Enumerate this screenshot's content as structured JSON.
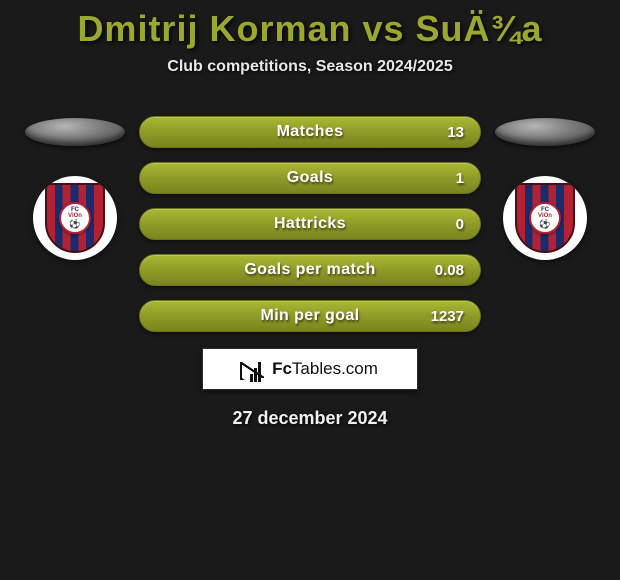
{
  "title": "Dmitrij Korman vs SuÄ¾a",
  "subtitle": "Club competitions, Season 2024/2025",
  "date": "27 december 2024",
  "brand": {
    "prefix": "Fc",
    "suffix": "Tables.com"
  },
  "logos": {
    "left": {
      "fc": "FC",
      "name": "ViOn"
    },
    "right": {
      "fc": "FC",
      "name": "ViOn"
    }
  },
  "stats": [
    {
      "label": "Matches",
      "value": "13"
    },
    {
      "label": "Goals",
      "value": "1"
    },
    {
      "label": "Hattricks",
      "value": "0"
    },
    {
      "label": "Goals per match",
      "value": "0.08"
    },
    {
      "label": "Min per goal",
      "value": "1237"
    }
  ],
  "colors": {
    "accent": "#9aa82e",
    "pill_top": "#aab833",
    "pill_bottom": "#7a841f",
    "background": "#1a1a1a",
    "shield_red": "#b22234",
    "shield_blue": "#1a2c6b"
  }
}
